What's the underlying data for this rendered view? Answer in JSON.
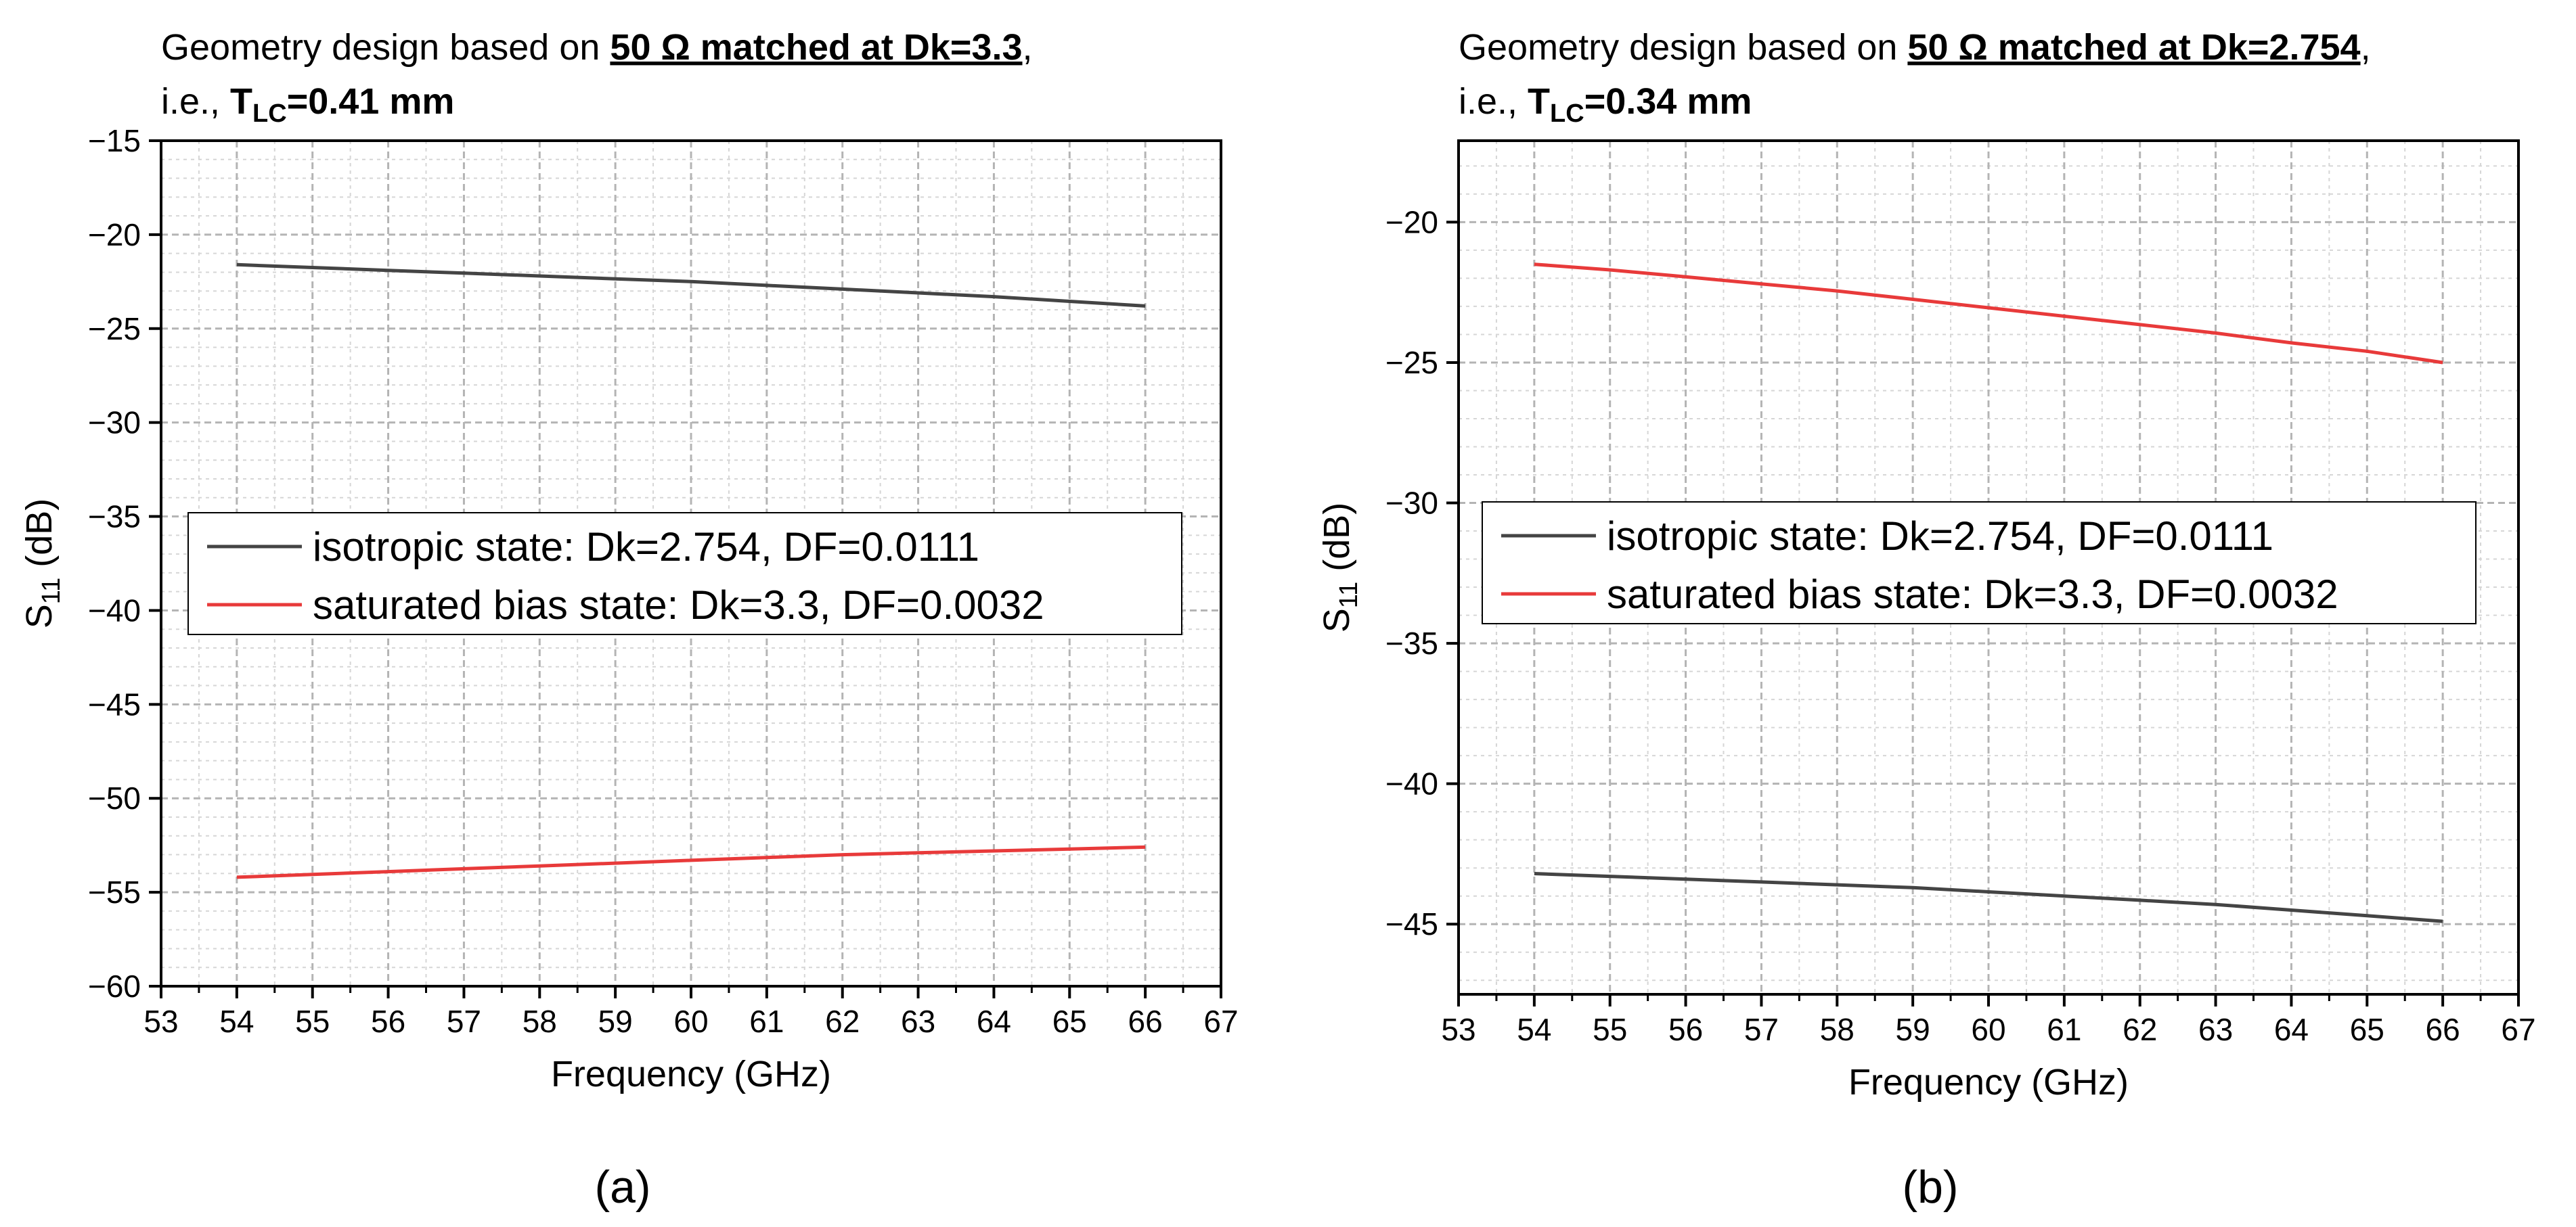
{
  "chart_data": [
    {
      "type": "line",
      "panel_label": "(a)",
      "title": {
        "line1_prefix": "Geometry design based on ",
        "line1_bold": "50 Ω matched at Dk=3.3",
        "line1_suffix": ",",
        "line2_prefix": "i.e., ",
        "line2_bold_T": "T",
        "line2_bold_sub": "LC",
        "line2_bold_rest": "=0.41 mm"
      },
      "xlabel": "Frequency (GHz)",
      "ylabel_main": "S",
      "ylabel_sub": "11",
      "ylabel_rest": " (dB)",
      "xlim": [
        53,
        67
      ],
      "ylim": [
        -60,
        -15
      ],
      "xticks": [
        "53",
        "54",
        "55",
        "56",
        "57",
        "58",
        "59",
        "60",
        "61",
        "62",
        "63",
        "64",
        "65",
        "66",
        "67"
      ],
      "xtick_values": [
        53,
        54,
        55,
        56,
        57,
        58,
        59,
        60,
        61,
        62,
        63,
        64,
        65,
        66,
        67
      ],
      "yticks": [
        "−15",
        "−20",
        "−25",
        "−30",
        "−35",
        "−40",
        "−45",
        "−50",
        "−55",
        "−60"
      ],
      "ytick_values": [
        -15,
        -20,
        -25,
        -30,
        -35,
        -40,
        -45,
        -50,
        -55,
        -60
      ],
      "grid": true,
      "series": [
        {
          "name": "isotropic state: Dk=2.754, DF=0.0111",
          "color": "#444444",
          "x": [
            54,
            55,
            56,
            57,
            58,
            59,
            60,
            61,
            62,
            63,
            64,
            65,
            66
          ],
          "y": [
            -21.6,
            -21.75,
            -21.9,
            -22.05,
            -22.2,
            -22.35,
            -22.5,
            -22.7,
            -22.9,
            -23.1,
            -23.3,
            -23.55,
            -23.8
          ]
        },
        {
          "name": "saturated bias state: Dk=3.3, DF=0.0032",
          "color": "#e83a3a",
          "x": [
            54,
            55,
            56,
            57,
            58,
            59,
            60,
            61,
            62,
            63,
            64,
            65,
            66
          ],
          "y": [
            -54.2,
            -54.05,
            -53.9,
            -53.75,
            -53.6,
            -53.45,
            -53.3,
            -53.15,
            -53.0,
            -52.9,
            -52.8,
            -52.7,
            -52.6
          ]
        }
      ]
    },
    {
      "type": "line",
      "panel_label": "(b)",
      "title": {
        "line1_prefix": "Geometry design based on ",
        "line1_bold": "50 Ω matched at Dk=2.754",
        "line1_suffix": ",",
        "line2_prefix": "i.e., ",
        "line2_bold_T": "T",
        "line2_bold_sub": "LC",
        "line2_bold_rest": "=0.34 mm"
      },
      "xlabel": "Frequency (GHz)",
      "ylabel_main": "S",
      "ylabel_sub": "11",
      "ylabel_rest": " (dB)",
      "xlim": [
        53,
        67
      ],
      "ylim": [
        -47.5,
        -17.1
      ],
      "xticks": [
        "53",
        "54",
        "55",
        "56",
        "57",
        "58",
        "59",
        "60",
        "61",
        "62",
        "63",
        "64",
        "65",
        "66",
        "67"
      ],
      "xtick_values": [
        53,
        54,
        55,
        56,
        57,
        58,
        59,
        60,
        61,
        62,
        63,
        64,
        65,
        66,
        67
      ],
      "yticks": [
        "−20",
        "−25",
        "−30",
        "−35",
        "−40",
        "−45"
      ],
      "ytick_values": [
        -20,
        -25,
        -30,
        -35,
        -40,
        -45
      ],
      "grid": true,
      "series": [
        {
          "name": "isotropic state: Dk=2.754, DF=0.0111",
          "color": "#444444",
          "x": [
            54,
            55,
            56,
            57,
            58,
            59,
            60,
            61,
            62,
            63,
            64,
            65,
            66
          ],
          "y": [
            -43.2,
            -43.3,
            -43.4,
            -43.5,
            -43.6,
            -43.7,
            -43.85,
            -44.0,
            -44.15,
            -44.3,
            -44.5,
            -44.7,
            -44.9
          ]
        },
        {
          "name": "saturated bias state: Dk=3.3, DF=0.0032",
          "color": "#e83a3a",
          "x": [
            54,
            55,
            56,
            57,
            58,
            59,
            60,
            61,
            62,
            63,
            64,
            65,
            66
          ],
          "y": [
            -21.5,
            -21.7,
            -21.95,
            -22.2,
            -22.45,
            -22.75,
            -23.05,
            -23.35,
            -23.65,
            -23.95,
            -24.3,
            -24.6,
            -25.0
          ]
        }
      ]
    }
  ]
}
